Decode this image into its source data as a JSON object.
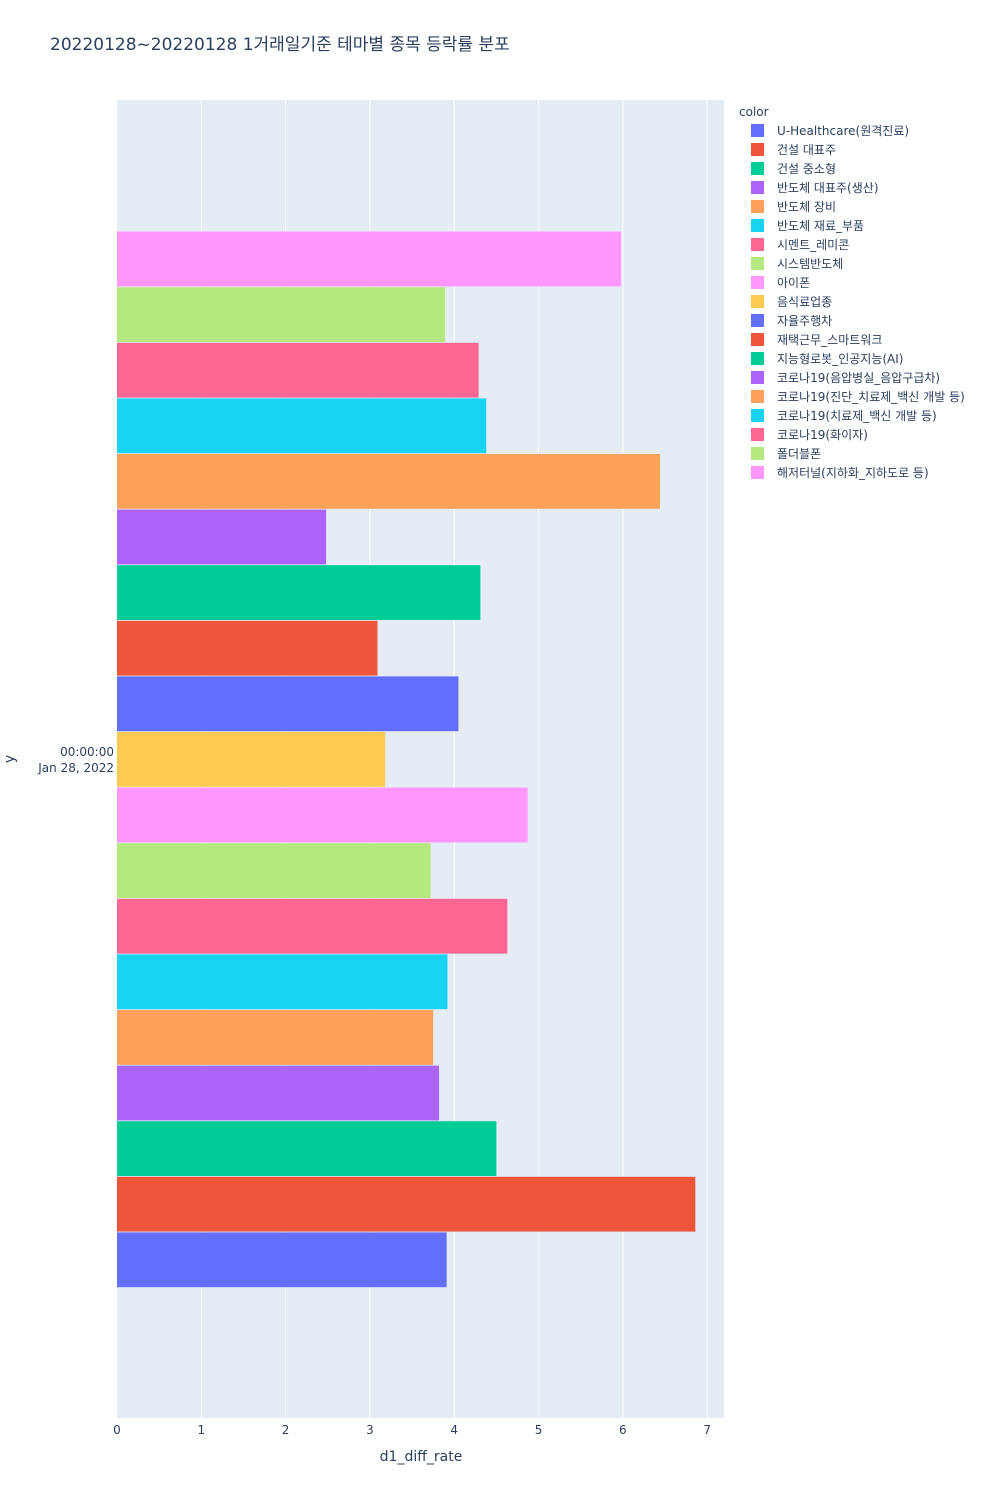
{
  "chart_data": {
    "type": "bar",
    "orientation": "horizontal",
    "title": "20220128~20220128 1거래일기준 테마별 종목 등락률 분포",
    "xlabel": "d1_diff_rate",
    "ylabel": "y",
    "y_category": [
      "00:00:00",
      "Jan 28, 2022"
    ],
    "xlim": [
      0,
      7.2
    ],
    "x_ticks": [
      0,
      1,
      2,
      3,
      4,
      5,
      6,
      7
    ],
    "grid": true,
    "legend_title": "color",
    "legend_position": "top-right",
    "series": [
      {
        "name": "U-Healthcare(원격진료)",
        "color": "#636efa",
        "value": 3.91
      },
      {
        "name": "건설 대표주",
        "color": "#EF553B",
        "value": 6.86
      },
      {
        "name": "건설 중소형",
        "color": "#00cc96",
        "value": 4.5
      },
      {
        "name": "반도체 대표주(생산)",
        "color": "#ab63fa",
        "value": 3.82
      },
      {
        "name": "반도체 장비",
        "color": "#FFA15A",
        "value": 3.75
      },
      {
        "name": "반도체 재료_부품",
        "color": "#19d3f3",
        "value": 3.92
      },
      {
        "name": "시멘트_레미콘",
        "color": "#FF6692",
        "value": 4.63
      },
      {
        "name": "시스템반도체",
        "color": "#B6E880",
        "value": 3.72
      },
      {
        "name": "아이폰",
        "color": "#FF97FF",
        "value": 4.87
      },
      {
        "name": "음식료업종",
        "color": "#FECB52",
        "value": 3.18
      },
      {
        "name": "자율주행차",
        "color": "#636efa",
        "value": 4.05
      },
      {
        "name": "재택근무_스마트워크",
        "color": "#EF553B",
        "value": 3.09
      },
      {
        "name": "지능형로봇_인공지능(AI)",
        "color": "#00cc96",
        "value": 4.31
      },
      {
        "name": "코로나19(음압병실_음압구급차)",
        "color": "#ab63fa",
        "value": 2.48
      },
      {
        "name": "코로나19(진단_치료제_백신 개발 등)",
        "color": "#FFA15A",
        "value": 6.44
      },
      {
        "name": "코로나19(치료제_백신 개발 등)",
        "color": "#19d3f3",
        "value": 4.38
      },
      {
        "name": "코로나19(화이자)",
        "color": "#FF6692",
        "value": 4.29
      },
      {
        "name": "폴더블폰",
        "color": "#B6E880",
        "value": 3.89
      },
      {
        "name": "해저터널(지하화_지하도로 등)",
        "color": "#FF97FF",
        "value": 5.98
      }
    ]
  }
}
